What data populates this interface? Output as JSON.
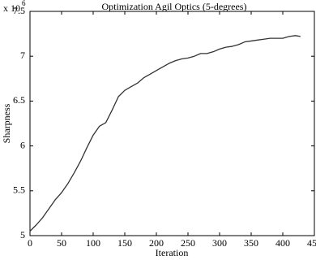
{
  "chart_data": {
    "type": "line",
    "title": "Optimization Agil Optics (5-degrees)",
    "x_label": "Iteration",
    "y_label": "Sharpness",
    "y_multiplier": {
      "base": "x 10",
      "power": "6"
    },
    "x": [
      0,
      10,
      20,
      30,
      40,
      50,
      60,
      70,
      80,
      90,
      100,
      110,
      120,
      130,
      140,
      150,
      160,
      170,
      180,
      190,
      200,
      210,
      220,
      230,
      240,
      250,
      260,
      270,
      280,
      290,
      300,
      310,
      320,
      330,
      340,
      350,
      360,
      370,
      380,
      390,
      400,
      410,
      420,
      428
    ],
    "series": [
      {
        "name": "Sharpness",
        "color": "#333333",
        "values": [
          5.05,
          5.12,
          5.2,
          5.3,
          5.4,
          5.48,
          5.58,
          5.7,
          5.83,
          5.98,
          6.12,
          6.22,
          6.26,
          6.4,
          6.55,
          6.62,
          6.66,
          6.7,
          6.76,
          6.8,
          6.84,
          6.88,
          6.92,
          6.95,
          6.97,
          6.98,
          7.0,
          7.03,
          7.03,
          7.05,
          7.08,
          7.1,
          7.11,
          7.13,
          7.16,
          7.17,
          7.18,
          7.19,
          7.2,
          7.2,
          7.2,
          7.22,
          7.23,
          7.22
        ]
      }
    ],
    "xlim": [
      0,
      450
    ],
    "xticks": [
      0,
      50,
      100,
      150,
      200,
      250,
      300,
      350,
      400,
      450
    ],
    "ylim": [
      5,
      7.5
    ],
    "yticks": [
      5,
      5.5,
      6,
      6.5,
      7,
      7.5
    ],
    "grid": false
  }
}
